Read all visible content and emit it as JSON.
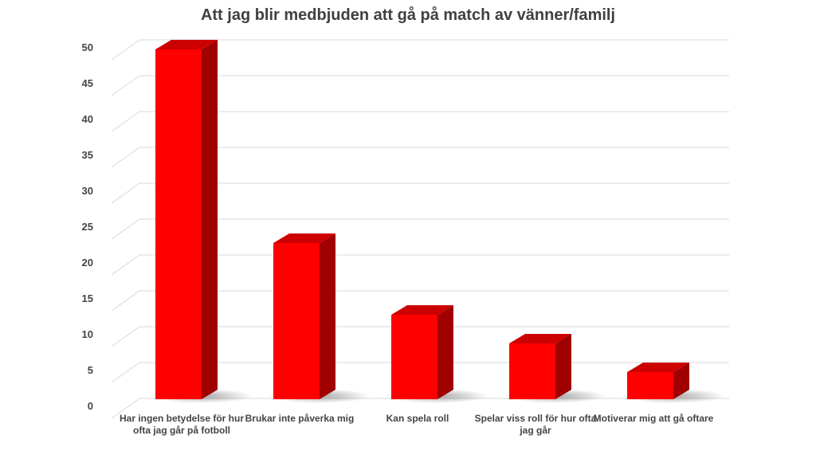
{
  "chart_data": {
    "type": "bar",
    "title": "Att jag blir medbjuden att gå på match av vänner/familj",
    "categories": [
      "Har ingen betydelse för hur ofta jag går på fotboll",
      "Brukar inte påverka mig",
      "Kan spela roll",
      "Spelar viss roll för hur ofta jag går",
      "Motiverar mig att gå oftare"
    ],
    "values": [
      50,
      23,
      13,
      9,
      5
    ],
    "ylim": [
      0,
      50
    ],
    "yticks": [
      0,
      5,
      10,
      15,
      20,
      25,
      30,
      35,
      40,
      45,
      50
    ],
    "xlabel": "",
    "ylabel": "",
    "grid": true,
    "legend": "none",
    "style": "3d-column",
    "colors": {
      "front": "#ff0000",
      "side": "#a00000",
      "top": "#cc0000"
    }
  }
}
